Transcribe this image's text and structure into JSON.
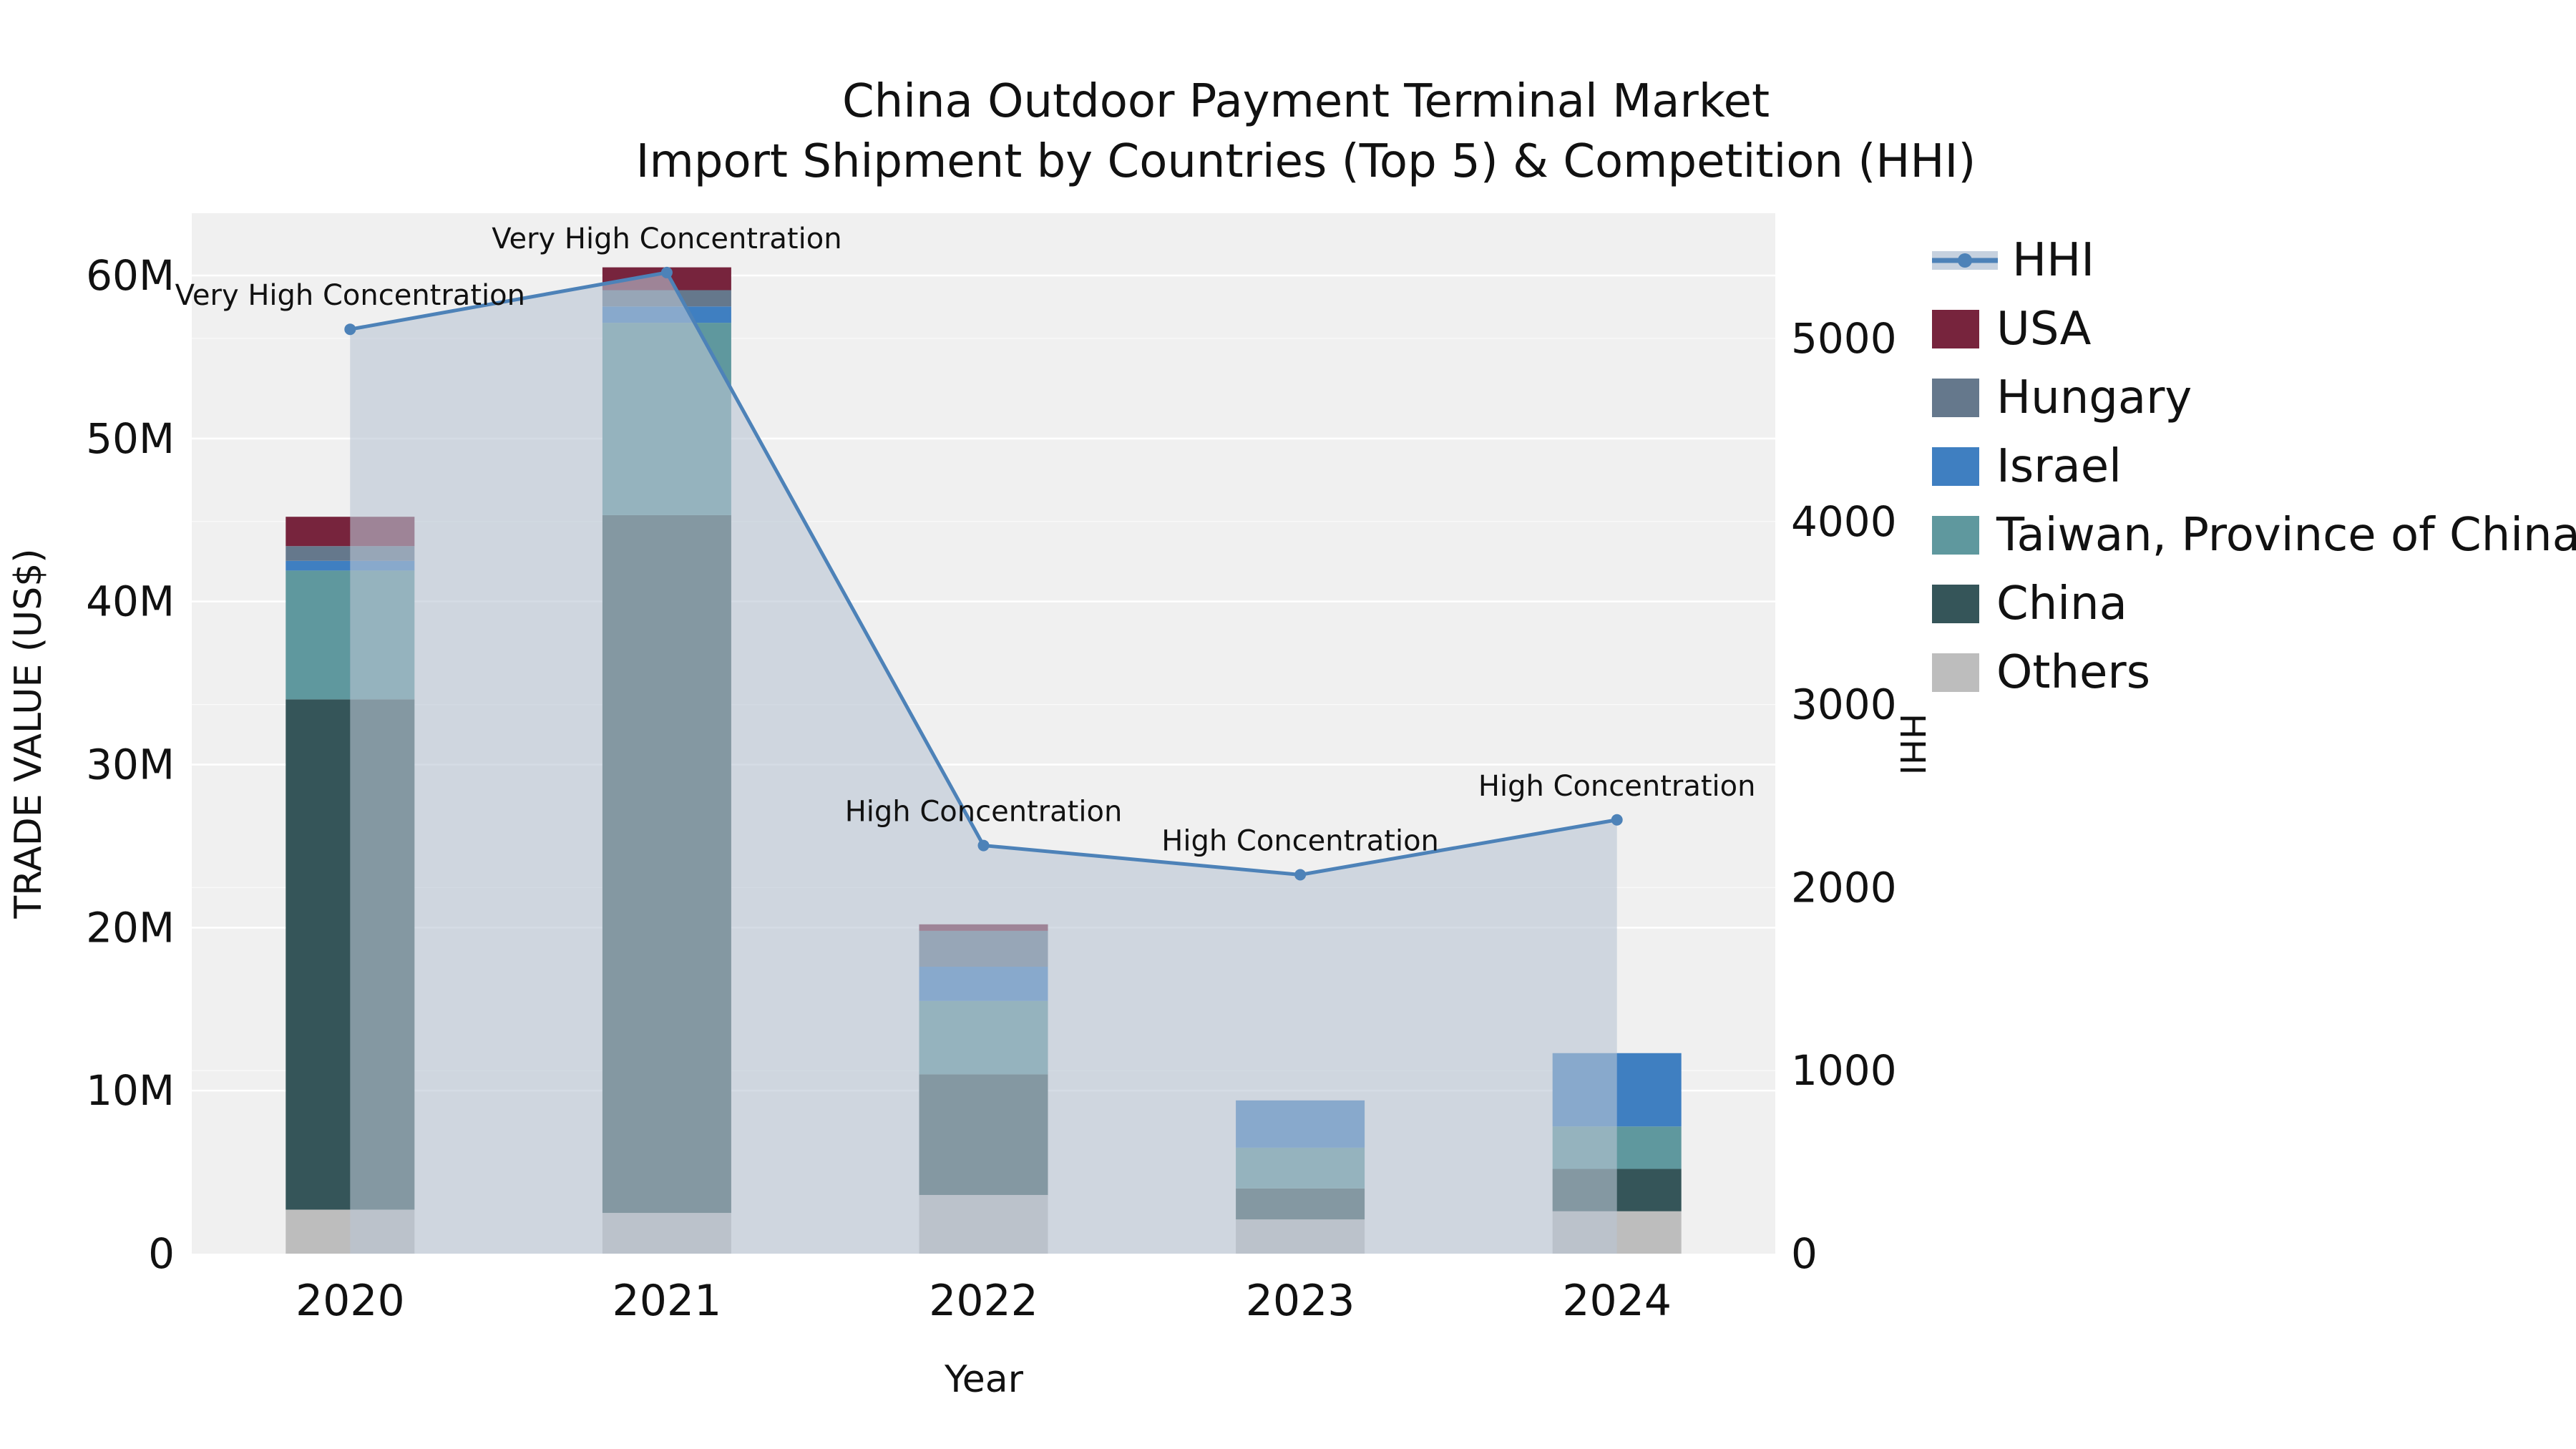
{
  "title": {
    "line1": "China Outdoor Payment Terminal Market",
    "line2": "Import Shipment by Countries (Top 5) & Competition (HHI)"
  },
  "axes": {
    "x_label": "Year",
    "y_left_label": "TRADE VALUE (US$)",
    "y_right_label": "HHI",
    "y_left_ticks": [
      {
        "value": 0,
        "label": "0"
      },
      {
        "value": 10,
        "label": "10M"
      },
      {
        "value": 20,
        "label": "20M"
      },
      {
        "value": 30,
        "label": "30M"
      },
      {
        "value": 40,
        "label": "40M"
      },
      {
        "value": 50,
        "label": "50M"
      },
      {
        "value": 60,
        "label": "60M"
      }
    ],
    "y_right_ticks": [
      {
        "value": 0,
        "label": "0"
      },
      {
        "value": 1000,
        "label": "1000"
      },
      {
        "value": 2000,
        "label": "2000"
      },
      {
        "value": 3000,
        "label": "3000"
      },
      {
        "value": 4000,
        "label": "4000"
      },
      {
        "value": 5000,
        "label": "5000"
      }
    ]
  },
  "chart_data": {
    "type": "bar+line",
    "title": "China Outdoor Payment Terminal Market — Import Shipment by Countries (Top 5) & Competition (HHI)",
    "categories": [
      "2020",
      "2021",
      "2022",
      "2023",
      "2024"
    ],
    "bar_unit": "million US$",
    "bar_stack_order_bottom_to_top": [
      "Others",
      "China",
      "Taiwan, Province of China",
      "Israel",
      "Hungary",
      "USA"
    ],
    "bar_series": [
      {
        "name": "Others",
        "color": "#bdbdbd",
        "values": [
          2.7,
          2.5,
          3.6,
          2.1,
          2.6
        ]
      },
      {
        "name": "China",
        "color": "#355559",
        "values": [
          31.3,
          42.8,
          7.4,
          1.9,
          2.6
        ]
      },
      {
        "name": "Taiwan, Province of China",
        "color": "#5f989e",
        "values": [
          7.9,
          11.8,
          4.5,
          2.5,
          2.6
        ]
      },
      {
        "name": "Israel",
        "color": "#3f7fc1",
        "values": [
          0.6,
          1.0,
          2.1,
          2.9,
          4.5
        ]
      },
      {
        "name": "Hungary",
        "color": "#65788c",
        "values": [
          0.9,
          1.0,
          2.2,
          0.0,
          0.0
        ]
      },
      {
        "name": "USA",
        "color": "#77243d",
        "values": [
          1.8,
          1.4,
          0.4,
          0.0,
          0.0
        ]
      }
    ],
    "bar_totals": [
      45.2,
      60.5,
      20.2,
      9.4,
      12.3
    ],
    "line_series": {
      "name": "HHI",
      "color": "#4d82b8",
      "area_fill": "#b9c4d4",
      "area_opacity": 0.6,
      "values": [
        5050,
        5360,
        2230,
        2070,
        2370
      ]
    },
    "annotations": [
      {
        "category": "2020",
        "text": "Very High Concentration"
      },
      {
        "category": "2021",
        "text": "Very High Concentration"
      },
      {
        "category": "2022",
        "text": "High Concentration"
      },
      {
        "category": "2023",
        "text": "High Concentration"
      },
      {
        "category": "2024",
        "text": "High Concentration"
      }
    ],
    "y_left_range_M": [
      0,
      63.8
    ],
    "y_right_range": [
      0,
      5690
    ],
    "grid": true,
    "legend_position": "right"
  },
  "legend": {
    "items": [
      {
        "label": "HHI",
        "color": "#4d82b8",
        "swatch": "line"
      },
      {
        "label": "USA",
        "color": "#77243d",
        "swatch": "square"
      },
      {
        "label": "Hungary",
        "color": "#65788c",
        "swatch": "square"
      },
      {
        "label": "Israel",
        "color": "#3f7fc1",
        "swatch": "square"
      },
      {
        "label": "Taiwan, Province of China",
        "color": "#5f989e",
        "swatch": "square"
      },
      {
        "label": "China",
        "color": "#355559",
        "swatch": "square"
      },
      {
        "label": "Others",
        "color": "#bdbdbd",
        "swatch": "square"
      }
    ]
  },
  "colors": {
    "plot_background": "#f0f0f0",
    "gridline": "#ffffff",
    "text": "#111111"
  }
}
